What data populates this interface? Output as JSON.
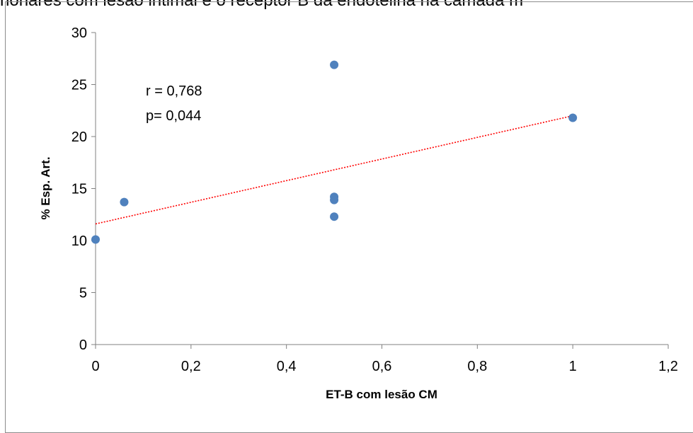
{
  "page": {
    "title_fragment": "nonares com lesão intimal e o receptor B da endotelina na camada m"
  },
  "chart_data": {
    "type": "scatter",
    "title": "",
    "xlabel": "ET-B com lesão CM",
    "ylabel": "% Esp. Art.",
    "xlim": [
      0,
      1.2
    ],
    "ylim": [
      0,
      30
    ],
    "x_ticks": [
      0,
      0.2,
      0.4,
      0.6,
      0.8,
      1,
      1.2
    ],
    "x_tick_labels": [
      "0",
      "0,2",
      "0,4",
      "0,6",
      "0,8",
      "1",
      "1,2"
    ],
    "y_ticks": [
      0,
      5,
      10,
      15,
      20,
      25,
      30
    ],
    "y_tick_labels": [
      "0",
      "5",
      "10",
      "15",
      "20",
      "25",
      "30"
    ],
    "grid": false,
    "legend": "none",
    "point_color": "#4f81bd",
    "trendline_color": "#ff0000",
    "series": [
      {
        "x": [
          0,
          0.06,
          0.5,
          0.5,
          0.5,
          0.5,
          1
        ],
        "y": [
          10.1,
          13.7,
          26.9,
          14.2,
          13.9,
          12.3,
          21.8
        ]
      }
    ],
    "trendline": {
      "x": [
        0,
        1
      ],
      "y": [
        11.6,
        22.0
      ]
    },
    "annotations": [
      "r = 0,768",
      "p= 0,044"
    ]
  }
}
